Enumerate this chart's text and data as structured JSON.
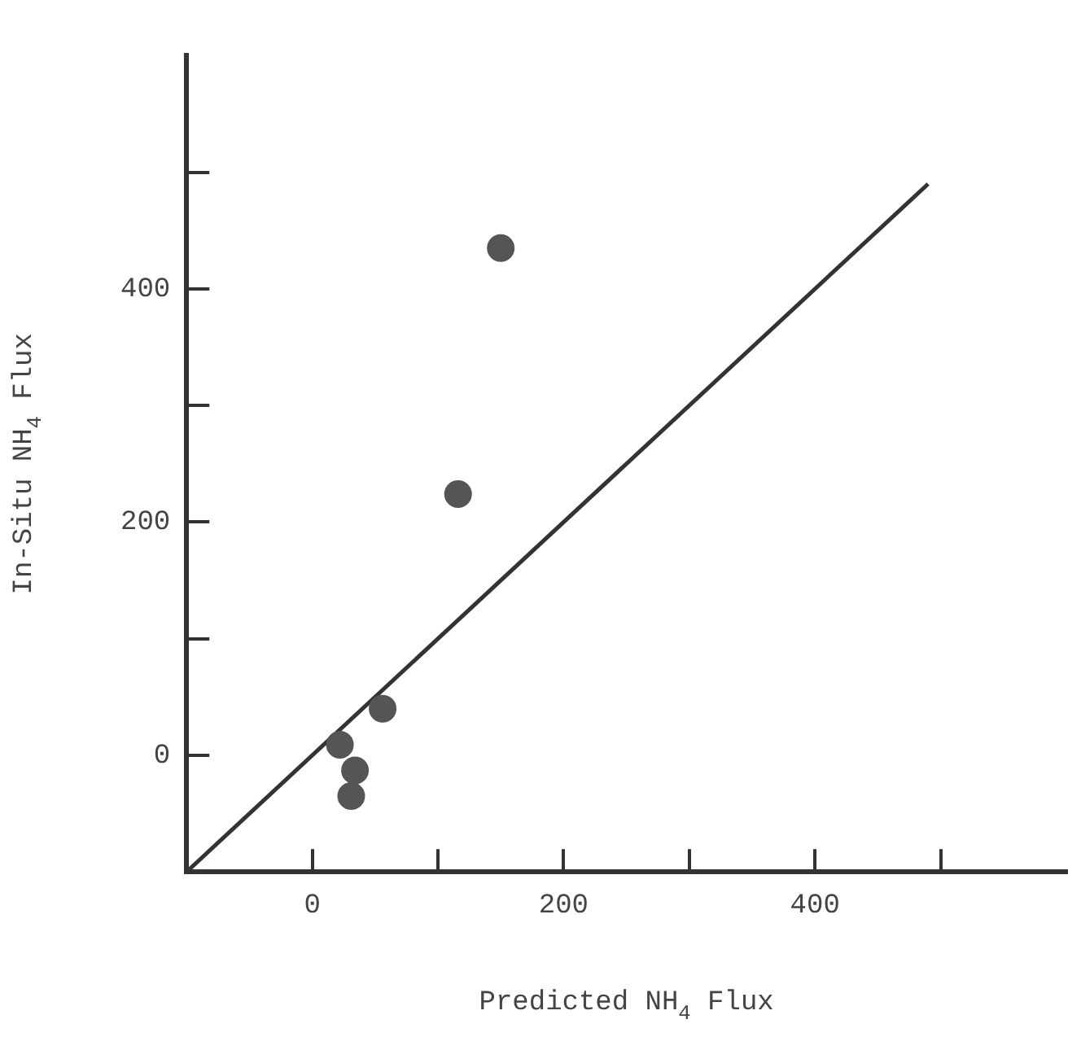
{
  "chart_data": {
    "type": "scatter",
    "xlabel": "Predicted NH$_{4}$ Flux",
    "ylabel": "In-Situ NH$_{4}$ Flux",
    "xlim": [
      -100,
      600
    ],
    "ylim": [
      -100,
      600
    ],
    "xticks": [
      0,
      {
        "value": 100,
        "label": null
      },
      200,
      {
        "value": 300,
        "label": null
      },
      400,
      {
        "value": 500,
        "label": null
      }
    ],
    "yticks": [
      0,
      {
        "value": 100,
        "label": null
      },
      200,
      {
        "value": 300,
        "label": null
      },
      400,
      {
        "value": 500,
        "label": null
      }
    ],
    "grid": false,
    "legend": false,
    "marker": "circle",
    "series": [
      {
        "color": "#555555",
        "x": [
          22,
          34,
          31,
          56,
          116,
          150
        ],
        "values": [
          9,
          -13,
          -35,
          40,
          224,
          435
        ]
      },
      {
        "type": "line",
        "color": "#333333",
        "x": [
          -100,
          490
        ],
        "values": [
          -100,
          490
        ],
        "marker": "none",
        "line_style": "solid"
      }
    ]
  }
}
